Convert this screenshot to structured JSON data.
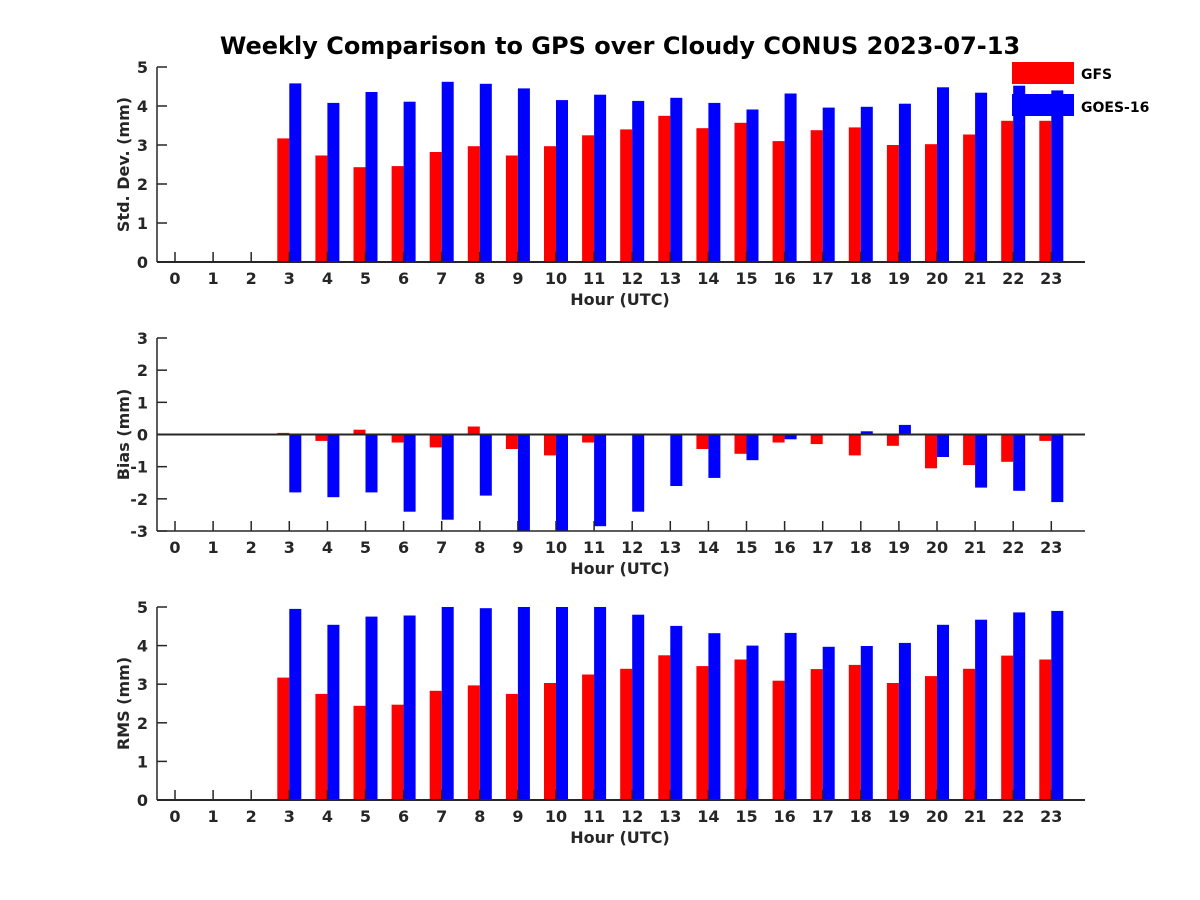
{
  "title": "Weekly Comparison to GPS over Cloudy CONUS 2023-07-13",
  "legend": {
    "placement": "top-right",
    "entries": [
      {
        "label": "GFS",
        "color": "#ff0000"
      },
      {
        "label": "GOES-16",
        "color": "#0000ff"
      }
    ]
  },
  "chart_data": [
    {
      "type": "bar",
      "xlabel": "Hour (UTC)",
      "ylabel": "Std. Dev. (mm)",
      "ylim": [
        0,
        5
      ],
      "yticks": [
        "0",
        "1",
        "2",
        "3",
        "4",
        "5"
      ],
      "categories": [
        "0",
        "1",
        "2",
        "3",
        "4",
        "5",
        "6",
        "7",
        "8",
        "9",
        "10",
        "11",
        "12",
        "13",
        "14",
        "15",
        "16",
        "17",
        "18",
        "19",
        "20",
        "21",
        "22",
        "23"
      ],
      "series": [
        {
          "name": "GFS",
          "color": "#ff0000",
          "values": [
            null,
            null,
            null,
            3.17,
            2.73,
            2.43,
            2.46,
            2.82,
            2.97,
            2.73,
            2.97,
            3.25,
            3.4,
            3.75,
            3.43,
            3.57,
            3.1,
            3.38,
            3.45,
            3.0,
            3.02,
            3.27,
            3.62,
            3.62
          ]
        },
        {
          "name": "GOES-16",
          "color": "#0000ff",
          "values": [
            null,
            null,
            null,
            4.58,
            4.08,
            4.36,
            4.11,
            4.62,
            4.57,
            4.45,
            4.15,
            4.29,
            4.13,
            4.21,
            4.08,
            3.91,
            4.32,
            3.96,
            3.98,
            4.06,
            4.48,
            4.34,
            4.52,
            4.4
          ]
        }
      ]
    },
    {
      "type": "bar",
      "xlabel": "Hour (UTC)",
      "ylabel": "Bias (mm)",
      "ylim": [
        -3,
        3
      ],
      "yticks": [
        "-3",
        "-2",
        "-1",
        "0",
        "1",
        "2",
        "3"
      ],
      "categories": [
        "0",
        "1",
        "2",
        "3",
        "4",
        "5",
        "6",
        "7",
        "8",
        "9",
        "10",
        "11",
        "12",
        "13",
        "14",
        "15",
        "16",
        "17",
        "18",
        "19",
        "20",
        "21",
        "22",
        "23"
      ],
      "series": [
        {
          "name": "GFS",
          "color": "#ff0000",
          "values": [
            null,
            null,
            null,
            0.05,
            -0.2,
            0.15,
            -0.25,
            -0.4,
            0.25,
            -0.45,
            -0.65,
            -0.25,
            0.0,
            0.0,
            -0.45,
            -0.6,
            -0.25,
            -0.3,
            -0.65,
            -0.35,
            -1.05,
            -0.95,
            -0.85,
            -0.2
          ]
        },
        {
          "name": "GOES-16",
          "color": "#0000ff",
          "values": [
            null,
            null,
            null,
            -1.8,
            -1.95,
            -1.8,
            -2.4,
            -2.65,
            -1.9,
            -3.0,
            -3.0,
            -2.85,
            -2.4,
            -1.6,
            -1.35,
            -0.8,
            -0.15,
            0.0,
            0.1,
            0.3,
            -0.7,
            -1.65,
            -1.75,
            -2.1
          ]
        }
      ]
    },
    {
      "type": "bar",
      "xlabel": "Hour (UTC)",
      "ylabel": "RMS (mm)",
      "ylim": [
        0,
        5
      ],
      "yticks": [
        "0",
        "1",
        "2",
        "3",
        "4",
        "5"
      ],
      "categories": [
        "0",
        "1",
        "2",
        "3",
        "4",
        "5",
        "6",
        "7",
        "8",
        "9",
        "10",
        "11",
        "12",
        "13",
        "14",
        "15",
        "16",
        "17",
        "18",
        "19",
        "20",
        "21",
        "22",
        "23"
      ],
      "series": [
        {
          "name": "GFS",
          "color": "#ff0000",
          "values": [
            null,
            null,
            null,
            3.17,
            2.75,
            2.44,
            2.47,
            2.83,
            2.97,
            2.75,
            3.03,
            3.25,
            3.4,
            3.75,
            3.47,
            3.64,
            3.09,
            3.39,
            3.5,
            3.03,
            3.21,
            3.4,
            3.74,
            3.64
          ]
        },
        {
          "name": "GOES-16",
          "color": "#0000ff",
          "values": [
            null,
            null,
            null,
            4.95,
            4.54,
            4.75,
            4.78,
            5.0,
            4.97,
            5.0,
            5.0,
            5.0,
            4.8,
            4.51,
            4.32,
            4.0,
            4.33,
            3.97,
            3.99,
            4.07,
            4.54,
            4.67,
            4.86,
            4.9
          ]
        }
      ]
    }
  ]
}
